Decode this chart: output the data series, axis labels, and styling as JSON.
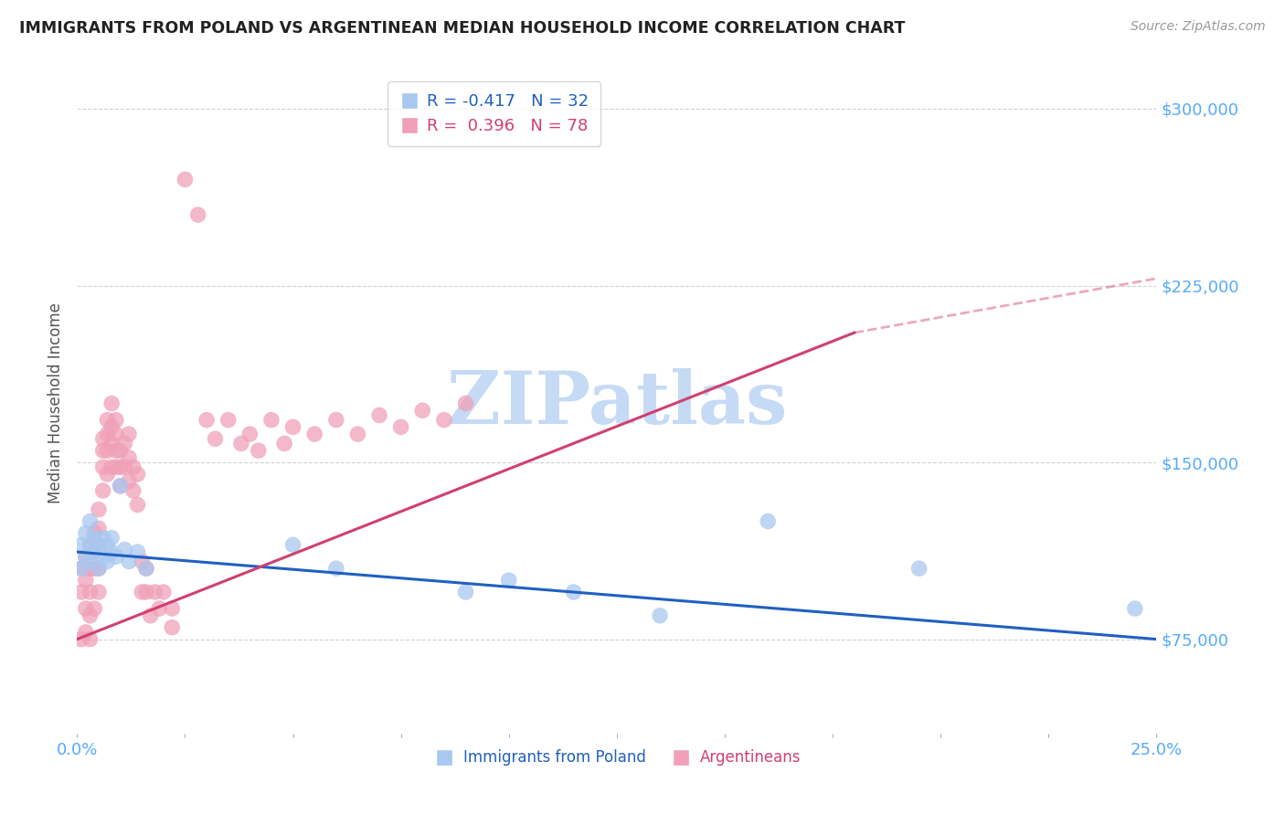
{
  "title": "IMMIGRANTS FROM POLAND VS ARGENTINEAN MEDIAN HOUSEHOLD INCOME CORRELATION CHART",
  "source": "Source: ZipAtlas.com",
  "ylabel": "Median Household Income",
  "xmin": 0.0,
  "xmax": 0.25,
  "ymin": 35000,
  "ymax": 315000,
  "yticks": [
    75000,
    150000,
    225000,
    300000
  ],
  "ytick_labels": [
    "$75,000",
    "$150,000",
    "$225,000",
    "$300,000"
  ],
  "xtick_positions": [
    0.0,
    0.025,
    0.05,
    0.075,
    0.1,
    0.125,
    0.15,
    0.175,
    0.2,
    0.225,
    0.25
  ],
  "color_blue_scatter": "#a8c8f0",
  "color_pink_scatter": "#f0a0b8",
  "color_trend_blue": "#2060c0",
  "color_trend_pink": "#d04070",
  "color_axis_labels": "#55aaff",
  "color_title": "#222222",
  "color_grid": "#cccccc",
  "color_watermark": "#c5daf5",
  "legend_r1": "R = -0.417",
  "legend_n1": "N = 32",
  "legend_r2": "R =  0.396",
  "legend_n2": "N = 78",
  "poland_x": [
    0.001,
    0.001,
    0.002,
    0.002,
    0.003,
    0.003,
    0.003,
    0.004,
    0.004,
    0.005,
    0.005,
    0.006,
    0.006,
    0.007,
    0.007,
    0.008,
    0.008,
    0.009,
    0.01,
    0.011,
    0.012,
    0.014,
    0.016,
    0.05,
    0.06,
    0.09,
    0.1,
    0.115,
    0.135,
    0.16,
    0.195,
    0.245
  ],
  "poland_y": [
    115000,
    105000,
    110000,
    120000,
    108000,
    115000,
    125000,
    112000,
    118000,
    105000,
    115000,
    110000,
    118000,
    115000,
    108000,
    112000,
    118000,
    110000,
    140000,
    113000,
    108000,
    112000,
    105000,
    115000,
    105000,
    95000,
    100000,
    95000,
    85000,
    125000,
    105000,
    88000
  ],
  "arg_x": [
    0.001,
    0.001,
    0.001,
    0.002,
    0.002,
    0.002,
    0.002,
    0.003,
    0.003,
    0.003,
    0.003,
    0.003,
    0.004,
    0.004,
    0.004,
    0.004,
    0.005,
    0.005,
    0.005,
    0.005,
    0.005,
    0.006,
    0.006,
    0.006,
    0.006,
    0.007,
    0.007,
    0.007,
    0.007,
    0.008,
    0.008,
    0.008,
    0.008,
    0.009,
    0.009,
    0.009,
    0.009,
    0.01,
    0.01,
    0.01,
    0.011,
    0.011,
    0.012,
    0.012,
    0.012,
    0.013,
    0.013,
    0.014,
    0.014,
    0.015,
    0.015,
    0.016,
    0.016,
    0.017,
    0.018,
    0.019,
    0.02,
    0.022,
    0.022,
    0.025,
    0.028,
    0.03,
    0.032,
    0.035,
    0.038,
    0.04,
    0.042,
    0.045,
    0.048,
    0.05,
    0.055,
    0.06,
    0.065,
    0.07,
    0.075,
    0.08,
    0.085,
    0.09
  ],
  "arg_y": [
    105000,
    95000,
    75000,
    110000,
    100000,
    88000,
    78000,
    115000,
    105000,
    95000,
    85000,
    75000,
    120000,
    112000,
    105000,
    88000,
    130000,
    122000,
    115000,
    105000,
    95000,
    160000,
    155000,
    148000,
    138000,
    168000,
    162000,
    155000,
    145000,
    175000,
    165000,
    158000,
    148000,
    168000,
    162000,
    155000,
    148000,
    155000,
    148000,
    140000,
    158000,
    148000,
    162000,
    152000,
    142000,
    148000,
    138000,
    145000,
    132000,
    108000,
    95000,
    105000,
    95000,
    85000,
    95000,
    88000,
    95000,
    88000,
    80000,
    270000,
    255000,
    168000,
    160000,
    168000,
    158000,
    162000,
    155000,
    168000,
    158000,
    165000,
    162000,
    168000,
    162000,
    170000,
    165000,
    172000,
    168000,
    175000
  ],
  "trend_blue_x0": 0.0,
  "trend_blue_x1": 0.25,
  "trend_blue_y0": 112000,
  "trend_blue_y1": 75000,
  "trend_pink_x0": 0.0,
  "trend_pink_x1": 0.18,
  "trend_pink_y0": 75000,
  "trend_pink_y1": 205000,
  "trend_pink_dash_x0": 0.18,
  "trend_pink_dash_x1": 0.25,
  "trend_pink_dash_y0": 205000,
  "trend_pink_dash_y1": 228000
}
